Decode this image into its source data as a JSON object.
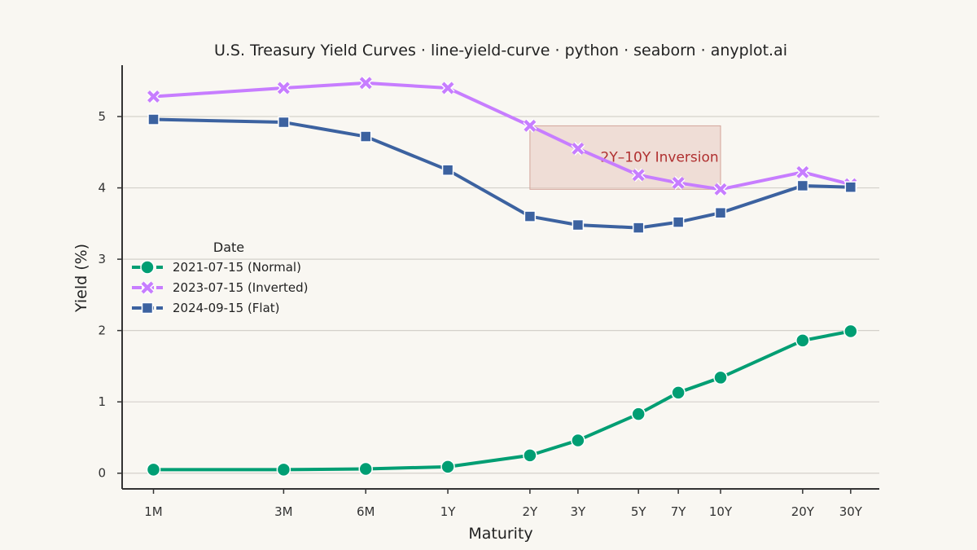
{
  "chart_data": {
    "type": "line",
    "title": "U.S. Treasury Yield Curves · line-yield-curve · python · seaborn · anyplot.ai",
    "xlabel": "Maturity",
    "ylabel": "Yield (%)",
    "x_scale": "log",
    "x_years": [
      0.0833,
      0.25,
      0.5,
      1,
      2,
      3,
      5,
      7,
      10,
      20,
      30
    ],
    "categories": [
      "1M",
      "3M",
      "6M",
      "1Y",
      "2Y",
      "3Y",
      "5Y",
      "7Y",
      "10Y",
      "20Y",
      "30Y"
    ],
    "ylim": [
      -0.22,
      5.72
    ],
    "yticks": [
      0,
      1,
      2,
      3,
      4,
      5
    ],
    "grid": "horizontal",
    "legend": {
      "title": "Date",
      "placement": "left-center"
    },
    "series": [
      {
        "name": "2021-07-15 (Normal)",
        "color": "#009e73",
        "marker": "circle",
        "values": [
          0.05,
          0.05,
          0.06,
          0.09,
          0.25,
          0.46,
          0.83,
          1.13,
          1.34,
          1.86,
          1.99
        ]
      },
      {
        "name": "2023-07-15 (Inverted)",
        "color": "#c77dff",
        "marker": "x",
        "values": [
          5.28,
          5.4,
          5.47,
          5.4,
          4.87,
          4.55,
          4.18,
          4.07,
          3.98,
          4.22,
          4.05
        ]
      },
      {
        "name": "2024-09-15 (Flat)",
        "color": "#3c62a0",
        "marker": "square",
        "values": [
          4.96,
          4.92,
          4.72,
          4.25,
          3.6,
          3.48,
          3.44,
          3.52,
          3.65,
          4.03,
          4.01
        ]
      }
    ],
    "annotations": [
      {
        "type": "shaded-region",
        "label": "2Y–10Y Inversion",
        "x_range": [
          2,
          10
        ],
        "y_range": [
          3.98,
          4.87
        ],
        "color": "#e8c8bf"
      }
    ]
  }
}
